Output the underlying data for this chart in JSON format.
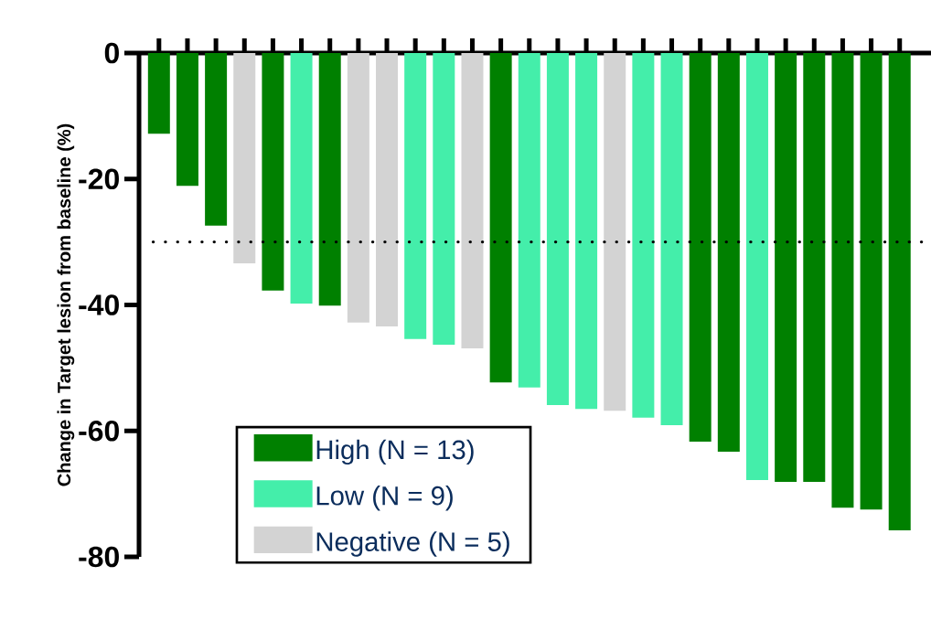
{
  "chart_data": {
    "type": "bar",
    "ylabel": "Change in Target lesion from baseline (%)",
    "categories": [
      null,
      null,
      null,
      null,
      null,
      null,
      null,
      null,
      null,
      null,
      null,
      null,
      null,
      null,
      null,
      null,
      null,
      null,
      null,
      null,
      null,
      null,
      null,
      null,
      null,
      null,
      null
    ],
    "series": [
      {
        "name": "High (N = 13)",
        "color": "#008000",
        "values": [
          -12.8,
          -21.1,
          -27.4,
          null,
          -37.7,
          null,
          -40.1,
          null,
          null,
          null,
          null,
          null,
          -52.3,
          null,
          null,
          null,
          null,
          null,
          null,
          -61.7,
          -63.3,
          null,
          -68.1,
          -68.1,
          -72.2,
          -72.5,
          -75.8
        ]
      },
      {
        "name": "Low (N = 9)",
        "color": "#44eeaa",
        "values": [
          null,
          null,
          null,
          null,
          null,
          -39.8,
          null,
          null,
          null,
          -45.4,
          -46.3,
          null,
          null,
          -53.1,
          -55.9,
          -56.5,
          null,
          -57.9,
          -59.1,
          null,
          null,
          -67.8,
          null,
          null,
          null,
          null,
          null
        ]
      },
      {
        "name": "Negative (N = 5)",
        "color": "#d3d3d3",
        "values": [
          null,
          null,
          null,
          -33.4,
          null,
          null,
          null,
          -42.8,
          -43.4,
          null,
          null,
          -46.9,
          null,
          null,
          null,
          null,
          -56.8,
          null,
          null,
          null,
          null,
          null,
          null,
          null,
          null,
          null,
          null
        ]
      }
    ],
    "ylim": [
      -80,
      0
    ],
    "yticks": [
      0,
      -20,
      -40,
      -60,
      -80
    ],
    "ref_lines": [
      {
        "axis": "y",
        "value": -30,
        "line_style": "dotted",
        "color": "#000000"
      }
    ],
    "legend": "bottom left",
    "grid": false
  }
}
